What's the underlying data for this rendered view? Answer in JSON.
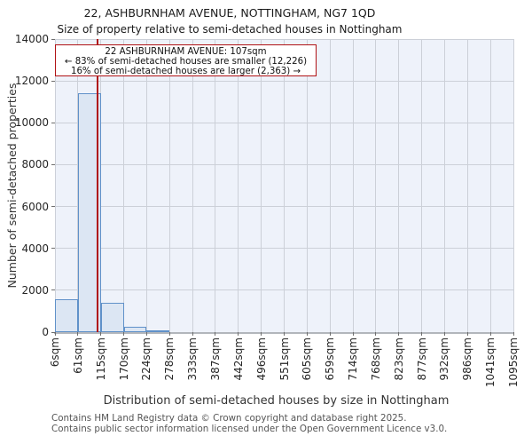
{
  "chart_data": {
    "type": "bar",
    "title": "22, ASHBURNHAM AVENUE, NOTTINGHAM, NG7 1QD",
    "subtitle": "Size of property relative to semi-detached houses in Nottingham",
    "xlabel": "Distribution of semi-detached houses by size in Nottingham",
    "ylabel": "Number of semi-detached properties",
    "ylim": [
      0,
      14000
    ],
    "yticks": [
      0,
      2000,
      4000,
      6000,
      8000,
      10000,
      12000,
      14000
    ],
    "grid": true,
    "bin_edges_sqm": [
      6,
      61,
      115,
      170,
      224,
      278,
      333,
      387,
      442,
      496,
      551,
      605,
      659,
      714,
      768,
      823,
      877,
      932,
      986,
      1041,
      1095
    ],
    "xtick_labels": [
      "6sqm",
      "61sqm",
      "115sqm",
      "170sqm",
      "224sqm",
      "278sqm",
      "333sqm",
      "387sqm",
      "442sqm",
      "496sqm",
      "551sqm",
      "605sqm",
      "659sqm",
      "714sqm",
      "768sqm",
      "823sqm",
      "877sqm",
      "932sqm",
      "986sqm",
      "1041sqm",
      "1095sqm"
    ],
    "values": [
      1550,
      11400,
      1400,
      250,
      50,
      0,
      0,
      0,
      0,
      0,
      0,
      0,
      0,
      0,
      0,
      0,
      0,
      0,
      0,
      0
    ],
    "marker": {
      "sqm": 107
    },
    "annotation": {
      "line1": "22 ASHBURNHAM AVENUE: 107sqm",
      "line2": "← 83% of semi-detached houses are smaller (12,226)",
      "line3": "16% of semi-detached houses are larger (2,363) →"
    },
    "colors": {
      "bar_fill": "#dce6f3",
      "bar_edge": "#6091c9",
      "plot_bg": "#eef2fa",
      "gridline": "#ccd0d8",
      "marker_red": "#b01215"
    }
  },
  "footer": {
    "line1": "Contains HM Land Registry data © Crown copyright and database right 2025.",
    "line2": "Contains public sector information licensed under the Open Government Licence v3.0."
  }
}
